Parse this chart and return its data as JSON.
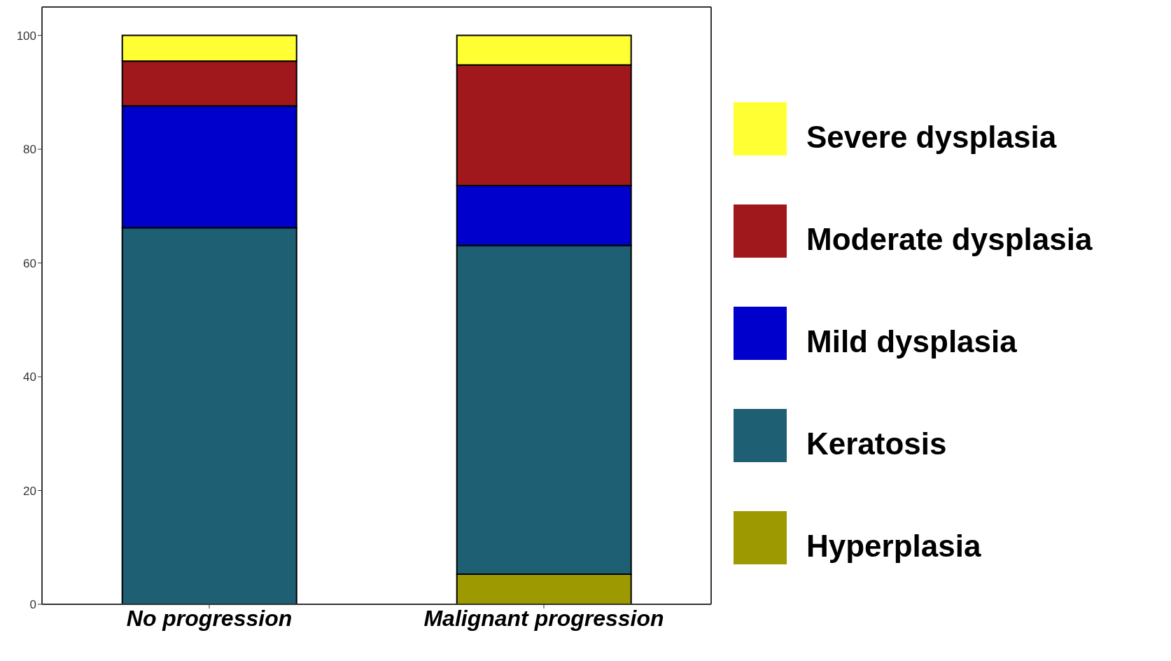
{
  "chart_data": {
    "type": "bar",
    "stacked": true,
    "categories": [
      "No progression",
      "Malignant progression"
    ],
    "series": [
      {
        "name": "Hyperplasia",
        "color": "#9c9a00",
        "values": [
          0,
          5.3
        ]
      },
      {
        "name": "Keratosis",
        "color": "#1e5f74",
        "values": [
          66.2,
          57.8
        ]
      },
      {
        "name": "Mild dysplasia",
        "color": "#0000cc",
        "values": [
          21.4,
          10.5
        ]
      },
      {
        "name": "Moderate dysplasia",
        "color": "#a0181c",
        "values": [
          7.9,
          21.2
        ]
      },
      {
        "name": "Severe dysplasia",
        "color": "#ffff33",
        "values": [
          4.5,
          5.2
        ]
      }
    ],
    "ylim": [
      0,
      105
    ],
    "yticks": [
      0,
      20,
      40,
      60,
      80,
      100
    ],
    "grid": false,
    "legend": "right"
  }
}
